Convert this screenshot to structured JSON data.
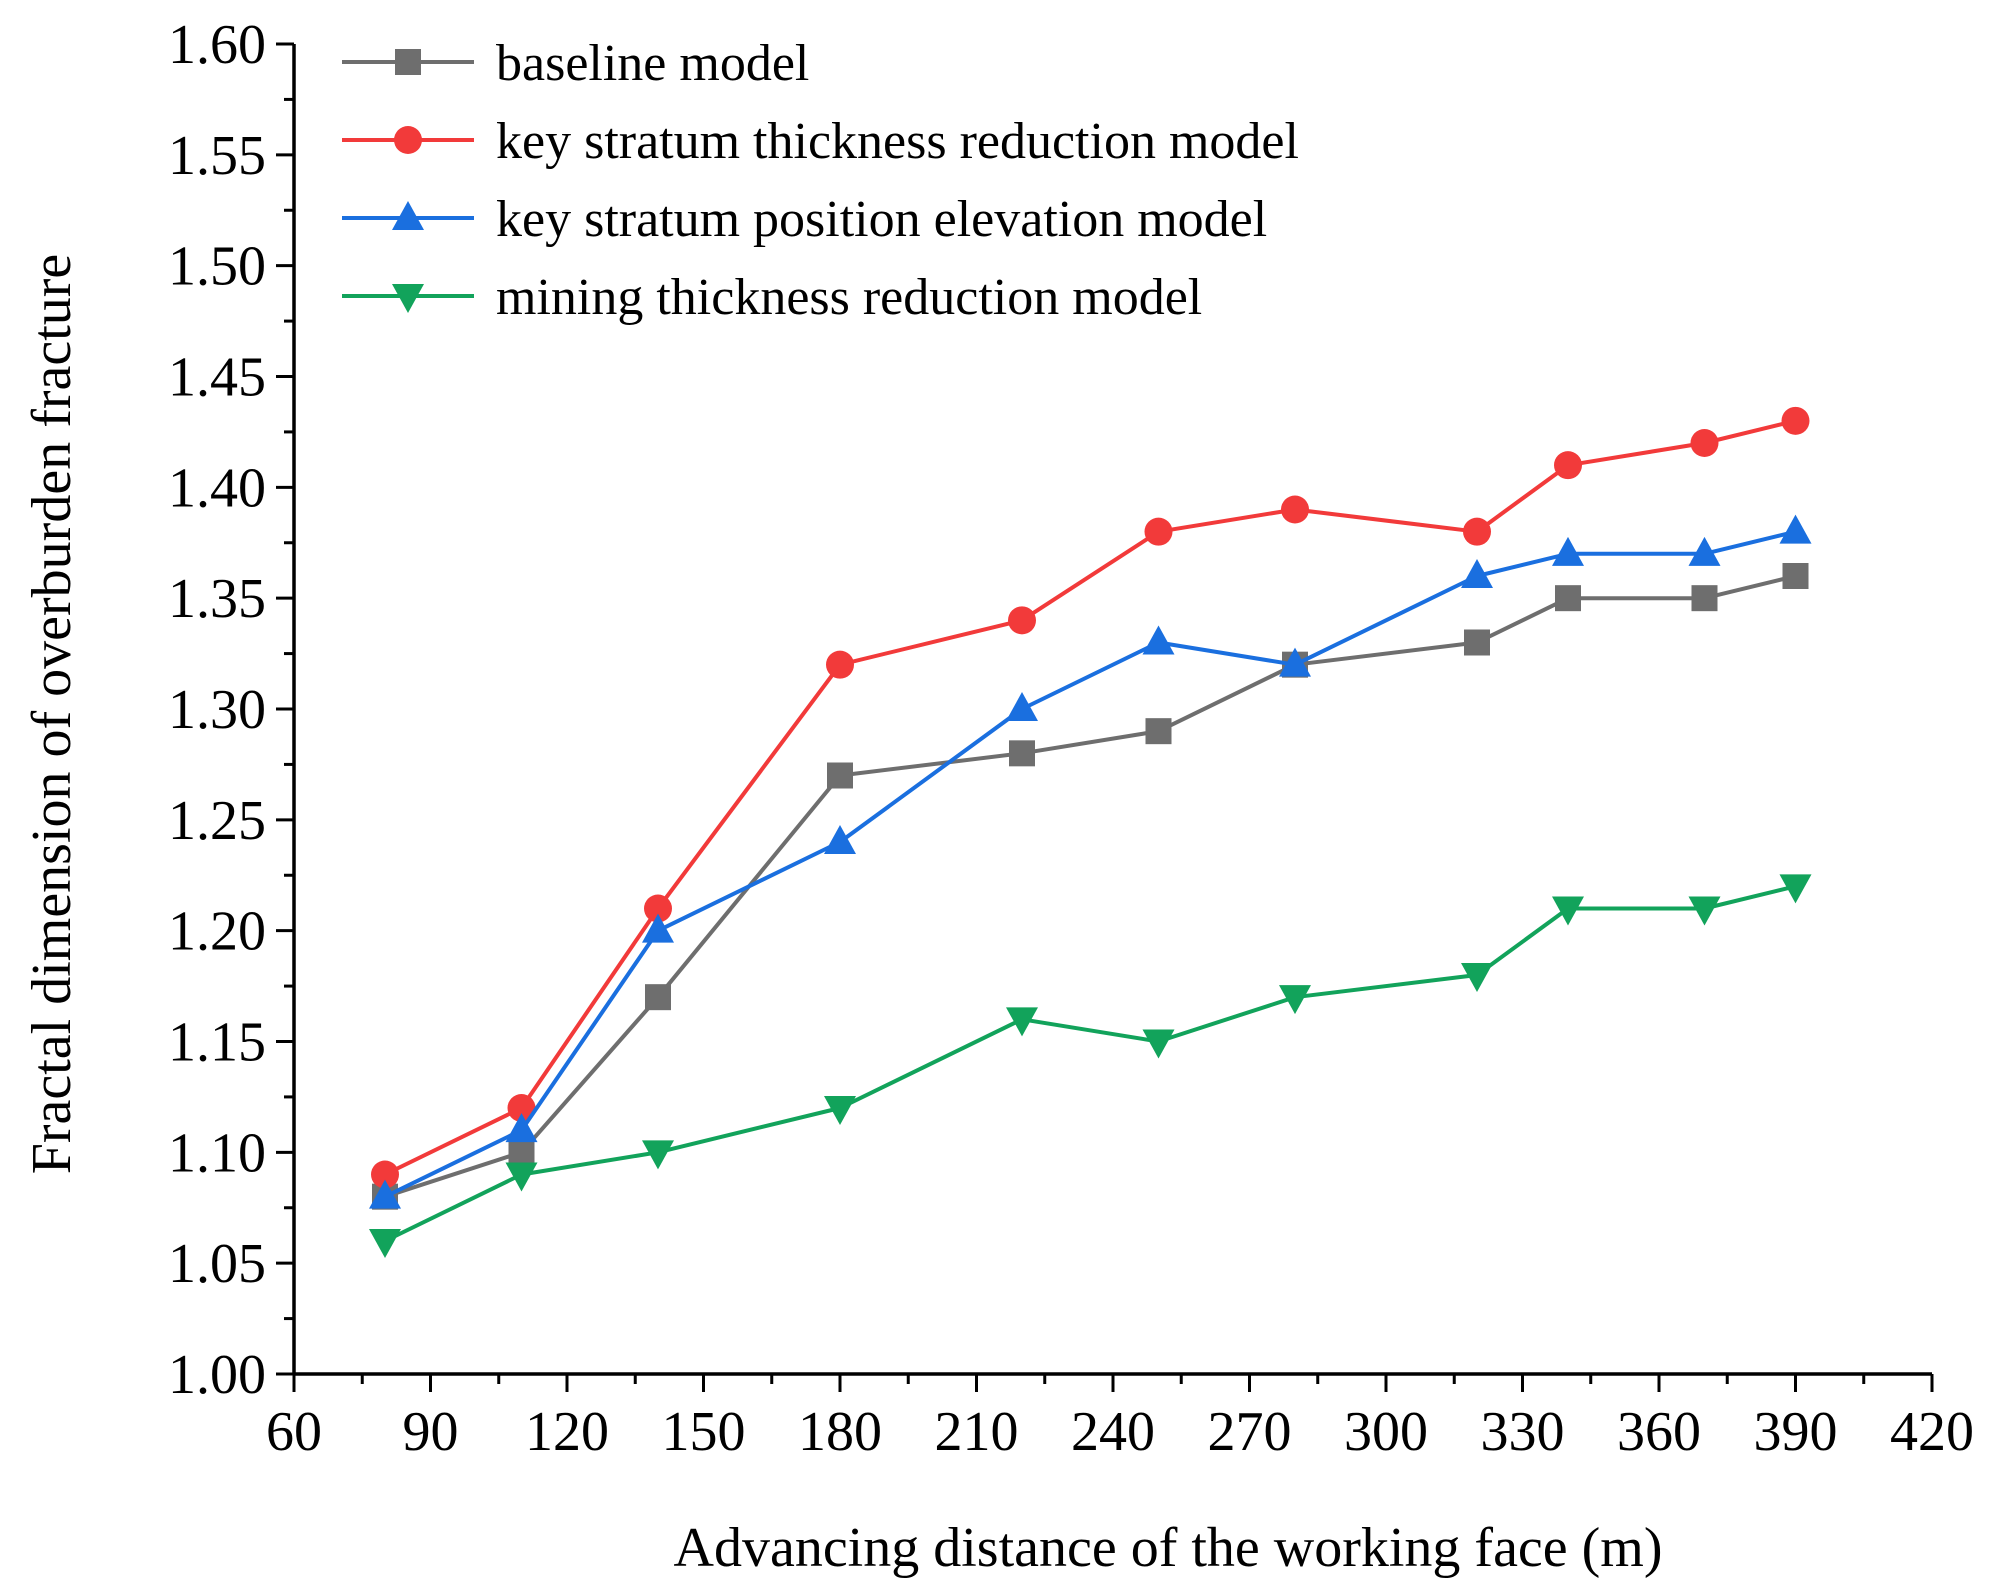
{
  "chart_data": {
    "type": "line",
    "title": "",
    "xlabel": "Advancing distance of the working face (m)",
    "ylabel": "Fractal dimension of overburden fracture",
    "xlim": [
      60,
      420
    ],
    "ylim": [
      1.0,
      1.6
    ],
    "x_ticks": [
      60,
      90,
      120,
      150,
      180,
      210,
      240,
      270,
      300,
      330,
      360,
      390,
      420
    ],
    "x_tick_labels": [
      "60",
      "90",
      "120",
      "150",
      "180",
      "210",
      "240",
      "270",
      "300",
      "330",
      "360",
      "390",
      "420"
    ],
    "y_ticks": [
      1.0,
      1.05,
      1.1,
      1.15,
      1.2,
      1.25,
      1.3,
      1.35,
      1.4,
      1.45,
      1.5,
      1.55,
      1.6
    ],
    "y_tick_labels": [
      "1.00",
      "1.05",
      "1.10",
      "1.15",
      "1.20",
      "1.25",
      "1.30",
      "1.35",
      "1.40",
      "1.45",
      "1.50",
      "1.55",
      "1.60"
    ],
    "grid": false,
    "legend_position": "top-left",
    "x": [
      80,
      110,
      140,
      180,
      220,
      250,
      280,
      320,
      340,
      370,
      390
    ],
    "series": [
      {
        "name": "baseline model",
        "color": "#6e6e6e",
        "marker": "square",
        "values": [
          1.08,
          1.1,
          1.17,
          1.27,
          1.28,
          1.29,
          1.32,
          1.33,
          1.35,
          1.35,
          1.36
        ]
      },
      {
        "name": "key stratum thickness reduction model",
        "color": "#f23a3a",
        "marker": "circle",
        "values": [
          1.09,
          1.12,
          1.21,
          1.32,
          1.34,
          1.38,
          1.39,
          1.38,
          1.41,
          1.42,
          1.43
        ]
      },
      {
        "name": "key stratum position elevation model",
        "color": "#1a6fdf",
        "marker": "triangle-up",
        "values": [
          1.08,
          1.11,
          1.2,
          1.24,
          1.3,
          1.33,
          1.32,
          1.36,
          1.37,
          1.37,
          1.38
        ]
      },
      {
        "name": "mining thickness reduction model",
        "color": "#12a35b",
        "marker": "triangle-down",
        "values": [
          1.06,
          1.09,
          1.1,
          1.12,
          1.16,
          1.15,
          1.17,
          1.18,
          1.21,
          1.21,
          1.22
        ]
      }
    ]
  }
}
